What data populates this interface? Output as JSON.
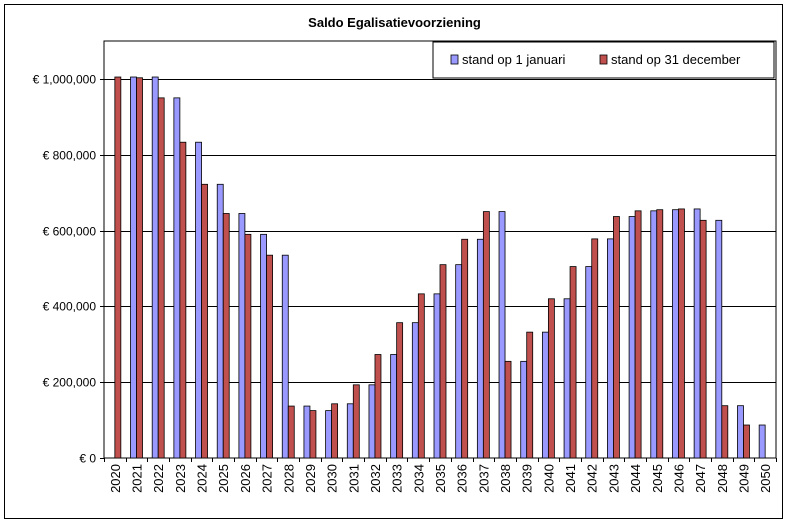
{
  "chart_data": {
    "type": "bar",
    "title": "Saldo Egalisatievoorziening",
    "xlabel": "",
    "ylabel": "",
    "ylim": [
      0,
      1100000
    ],
    "yticks": [
      0,
      200000,
      400000,
      600000,
      800000,
      1000000
    ],
    "ytick_labels": [
      "€ 0",
      "€ 200,000",
      "€ 400,000",
      "€ 600,000",
      "€ 800,000",
      "€ 1,000,000"
    ],
    "grid": true,
    "legend_position": "top-right",
    "categories": [
      "2020",
      "2021",
      "2022",
      "2023",
      "2024",
      "2025",
      "2026",
      "2027",
      "2028",
      "2029",
      "2030",
      "2031",
      "2032",
      "2033",
      "2034",
      "2035",
      "2036",
      "2037",
      "2038",
      "2039",
      "2040",
      "2041",
      "2042",
      "2043",
      "2044",
      "2045",
      "2046",
      "2047",
      "2048",
      "2049",
      "2050"
    ],
    "series": [
      {
        "name": "stand op 1 januari",
        "color": "#9999ff",
        "values": [
          0,
          1005000,
          1005000,
          950000,
          833000,
          722000,
          645000,
          590000,
          535000,
          137000,
          125000,
          143000,
          193000,
          273000,
          357000,
          433000,
          510000,
          577000,
          650000,
          255000,
          332000,
          420000,
          505000,
          578000,
          637000,
          652000,
          655000,
          657000,
          627000,
          138000,
          87000
        ]
      },
      {
        "name": "stand op 31 december",
        "color": "#c0504d",
        "values": [
          1005000,
          1003000,
          950000,
          833000,
          722000,
          645000,
          590000,
          535000,
          137000,
          125000,
          143000,
          193000,
          273000,
          357000,
          433000,
          510000,
          577000,
          650000,
          255000,
          332000,
          420000,
          505000,
          578000,
          637000,
          652000,
          655000,
          657000,
          627000,
          138000,
          87000,
          0
        ]
      }
    ]
  }
}
